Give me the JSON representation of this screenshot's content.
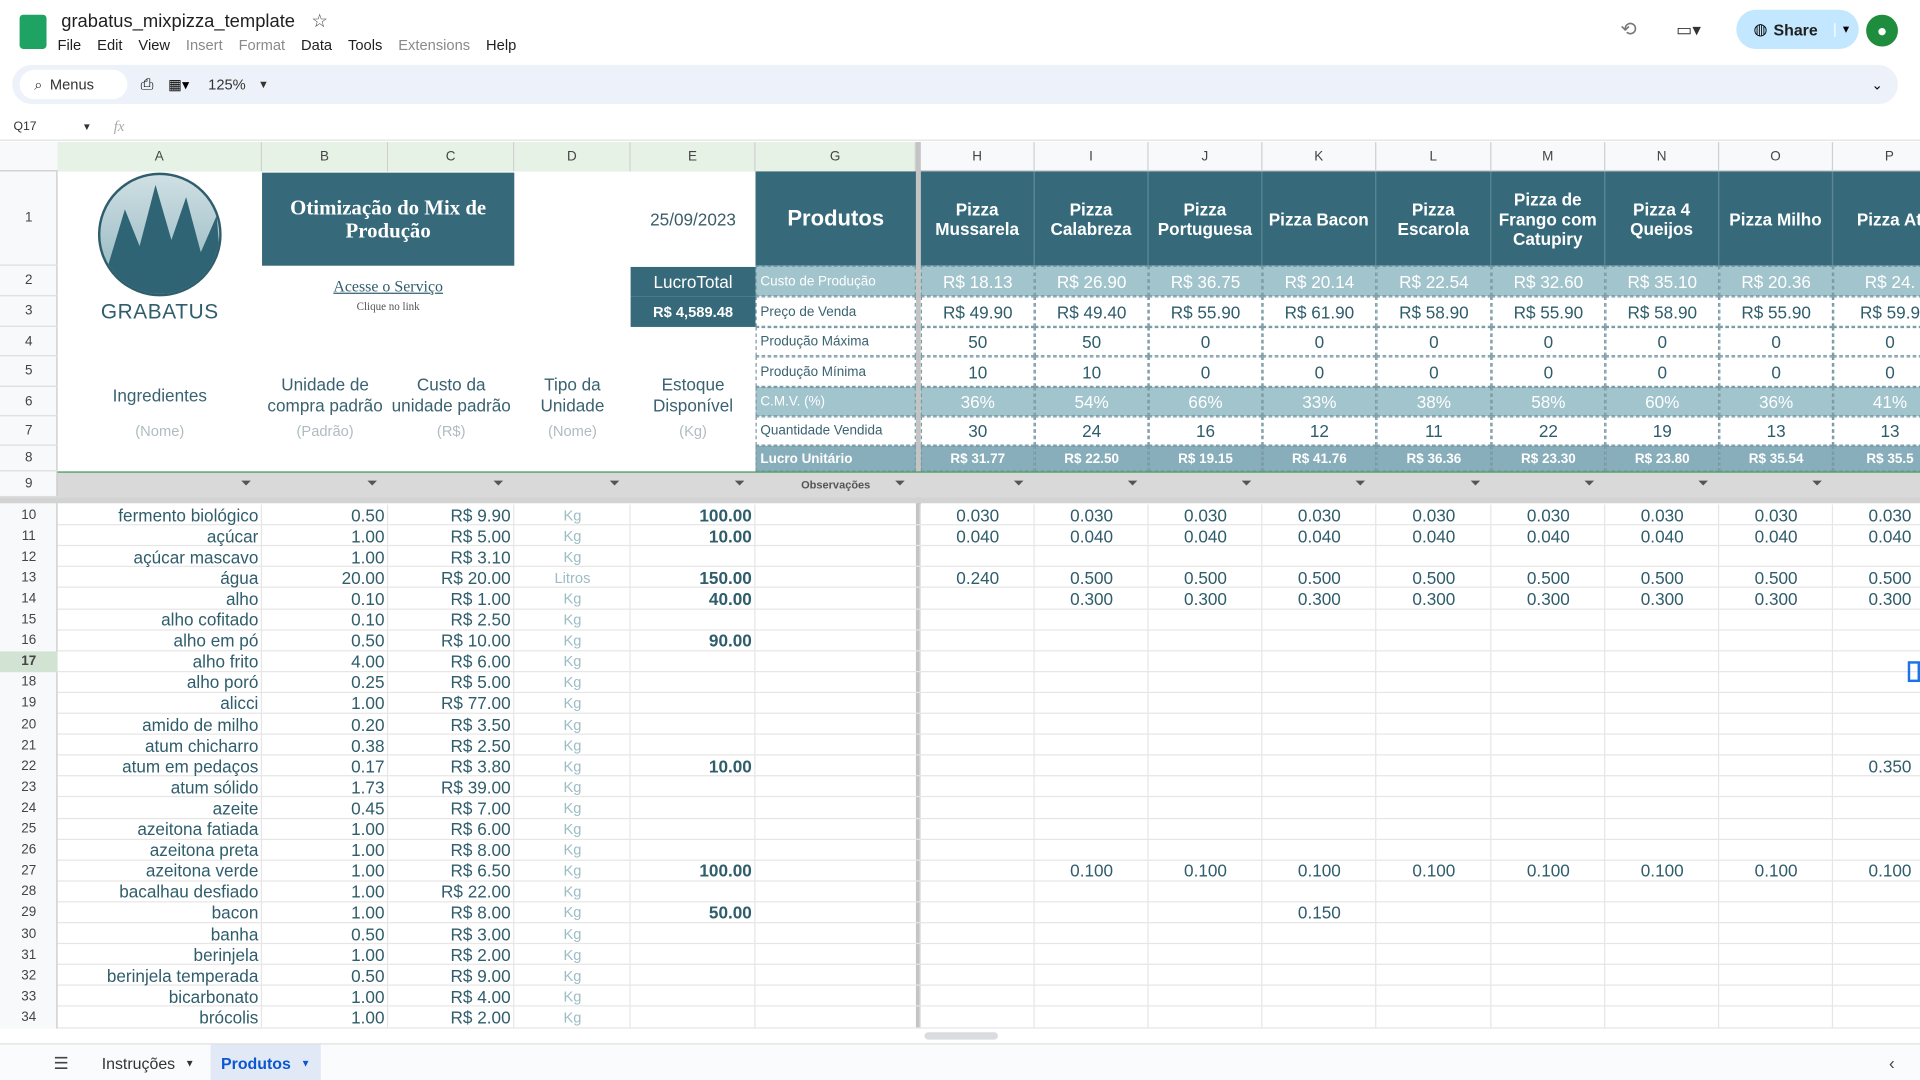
{
  "header": {
    "title": "grabatus_mixpizza_template",
    "menus": [
      "File",
      "Edit",
      "View",
      "Insert",
      "Format",
      "Data",
      "Tools",
      "Extensions",
      "Help"
    ],
    "search": "Menus",
    "zoom": "125%",
    "share": "Share",
    "cell_ref": "Q17",
    "fx": "fx"
  },
  "columns": [
    "A",
    "B",
    "C",
    "D",
    "E",
    "G",
    "H",
    "I",
    "J",
    "K",
    "L",
    "M",
    "N",
    "O",
    "P"
  ],
  "row_numbers": [
    1,
    2,
    3,
    4,
    5,
    6,
    7,
    8,
    9
  ],
  "sheet": {
    "logo_text": "GRABATUS",
    "title": "Otimização do Mix de Produção",
    "link": "Acesse o Serviço",
    "link_hint": "Clique no link",
    "date": "25/09/2023",
    "profit_label": "LucroTotal",
    "profit_value": "R$ 4,589.48",
    "ingredient_headers": [
      {
        "label": "Ingredientes",
        "unit": "(Nome)"
      },
      {
        "label": "Unidade de compra padrão",
        "unit": "(Padrão)"
      },
      {
        "label": "Custo da unidade padrão",
        "unit": "(R$)"
      },
      {
        "label": "Tipo da Unidade",
        "unit": "(Nome)"
      },
      {
        "label": "Estoque Disponível",
        "unit": "(Kg)"
      }
    ],
    "products_label": "Produtos",
    "observations": "Observações",
    "metric_labels": [
      "Custo de Produção",
      "Preço de Venda",
      "Produção Máxima",
      "Produção Mínima",
      "C.M.V. (%)",
      "Quantidade Vendida",
      "Lucro Unitário"
    ],
    "products": [
      {
        "name": "Pizza Mussarela",
        "metrics": [
          "R$ 18.13",
          "R$ 49.90",
          "50",
          "10",
          "36%",
          "30",
          "R$ 31.77"
        ]
      },
      {
        "name": "Pizza Calabreza",
        "metrics": [
          "R$ 26.90",
          "R$ 49.40",
          "50",
          "10",
          "54%",
          "24",
          "R$ 22.50"
        ]
      },
      {
        "name": "Pizza Portuguesa",
        "metrics": [
          "R$ 36.75",
          "R$ 55.90",
          "0",
          "0",
          "66%",
          "16",
          "R$ 19.15"
        ]
      },
      {
        "name": "Pizza Bacon",
        "metrics": [
          "R$ 20.14",
          "R$ 61.90",
          "0",
          "0",
          "33%",
          "12",
          "R$ 41.76"
        ]
      },
      {
        "name": "Pizza Escarola",
        "metrics": [
          "R$ 22.54",
          "R$ 58.90",
          "0",
          "0",
          "38%",
          "11",
          "R$ 36.36"
        ]
      },
      {
        "name": "Pizza de Frango com Catupiry",
        "metrics": [
          "R$ 32.60",
          "R$ 55.90",
          "0",
          "0",
          "58%",
          "22",
          "R$ 23.30"
        ]
      },
      {
        "name": "Pizza 4 Queijos",
        "metrics": [
          "R$ 35.10",
          "R$ 58.90",
          "0",
          "0",
          "60%",
          "19",
          "R$ 23.80"
        ]
      },
      {
        "name": "Pizza Milho",
        "metrics": [
          "R$ 20.36",
          "R$ 55.90",
          "0",
          "0",
          "36%",
          "13",
          "R$ 35.54"
        ]
      },
      {
        "name": "Pizza At",
        "metrics": [
          "R$ 24.",
          "R$ 59.9",
          "0",
          "0",
          "41%",
          "13",
          "R$ 35.5"
        ]
      }
    ],
    "ingredients": [
      {
        "row": 10,
        "name": "fermento biológico",
        "unit": "0.50",
        "cost": "R$ 9.90",
        "type": "Kg",
        "stock": "100.00",
        "qty": [
          "0.030",
          "0.030",
          "0.030",
          "0.030",
          "0.030",
          "0.030",
          "0.030",
          "0.030",
          "0.030"
        ]
      },
      {
        "row": 11,
        "name": "açúcar",
        "unit": "1.00",
        "cost": "R$ 5.00",
        "type": "Kg",
        "stock": "10.00",
        "qty": [
          "0.040",
          "0.040",
          "0.040",
          "0.040",
          "0.040",
          "0.040",
          "0.040",
          "0.040",
          "0.040"
        ]
      },
      {
        "row": 12,
        "name": "açúcar mascavo",
        "unit": "1.00",
        "cost": "R$ 3.10",
        "type": "Kg",
        "stock": null,
        "qty": [
          null,
          null,
          null,
          null,
          null,
          null,
          null,
          null,
          null
        ]
      },
      {
        "row": 13,
        "name": "água",
        "unit": "20.00",
        "cost": "R$ 20.00",
        "type": "Litros",
        "stock": "150.00",
        "qty": [
          "0.240",
          "0.500",
          "0.500",
          "0.500",
          "0.500",
          "0.500",
          "0.500",
          "0.500",
          "0.500"
        ]
      },
      {
        "row": 14,
        "name": "alho",
        "unit": "0.10",
        "cost": "R$ 1.00",
        "type": "Kg",
        "stock": "40.00",
        "qty": [
          null,
          "0.300",
          "0.300",
          "0.300",
          "0.300",
          "0.300",
          "0.300",
          "0.300",
          "0.300"
        ]
      },
      {
        "row": 15,
        "name": "alho cofitado",
        "unit": "0.10",
        "cost": "R$ 2.50",
        "type": "Kg",
        "stock": null,
        "qty": [
          null,
          null,
          null,
          null,
          null,
          null,
          null,
          null,
          null
        ]
      },
      {
        "row": 16,
        "name": "alho em pó",
        "unit": "0.50",
        "cost": "R$ 10.00",
        "type": "Kg",
        "stock": "90.00",
        "qty": [
          null,
          null,
          null,
          null,
          null,
          null,
          null,
          null,
          null
        ]
      },
      {
        "row": 17,
        "name": "alho frito",
        "unit": "4.00",
        "cost": "R$ 6.00",
        "type": "Kg",
        "stock": null,
        "qty": [
          null,
          null,
          null,
          null,
          null,
          null,
          null,
          null,
          null
        ]
      },
      {
        "row": 18,
        "name": "alho poró",
        "unit": "0.25",
        "cost": "R$ 5.00",
        "type": "Kg",
        "stock": null,
        "qty": [
          null,
          null,
          null,
          null,
          null,
          null,
          null,
          null,
          null
        ]
      },
      {
        "row": 19,
        "name": "alicci",
        "unit": "1.00",
        "cost": "R$ 77.00",
        "type": "Kg",
        "stock": null,
        "qty": [
          null,
          null,
          null,
          null,
          null,
          null,
          null,
          null,
          null
        ]
      },
      {
        "row": 20,
        "name": "amido de milho",
        "unit": "0.20",
        "cost": "R$ 3.50",
        "type": "Kg",
        "stock": null,
        "qty": [
          null,
          null,
          null,
          null,
          null,
          null,
          null,
          null,
          null
        ]
      },
      {
        "row": 21,
        "name": "atum chicharro",
        "unit": "0.38",
        "cost": "R$ 2.50",
        "type": "Kg",
        "stock": null,
        "qty": [
          null,
          null,
          null,
          null,
          null,
          null,
          null,
          null,
          null
        ]
      },
      {
        "row": 22,
        "name": "atum em pedaços",
        "unit": "0.17",
        "cost": "R$ 3.80",
        "type": "Kg",
        "stock": "10.00",
        "qty": [
          null,
          null,
          null,
          null,
          null,
          null,
          null,
          null,
          "0.350"
        ]
      },
      {
        "row": 23,
        "name": "atum sólido",
        "unit": "1.73",
        "cost": "R$ 39.00",
        "type": "Kg",
        "stock": null,
        "qty": [
          null,
          null,
          null,
          null,
          null,
          null,
          null,
          null,
          null
        ]
      },
      {
        "row": 24,
        "name": "azeite",
        "unit": "0.45",
        "cost": "R$ 7.00",
        "type": "Kg",
        "stock": null,
        "qty": [
          null,
          null,
          null,
          null,
          null,
          null,
          null,
          null,
          null
        ]
      },
      {
        "row": 25,
        "name": "azeitona fatiada",
        "unit": "1.00",
        "cost": "R$ 6.00",
        "type": "Kg",
        "stock": null,
        "qty": [
          null,
          null,
          null,
          null,
          null,
          null,
          null,
          null,
          null
        ]
      },
      {
        "row": 26,
        "name": "azeitona preta",
        "unit": "1.00",
        "cost": "R$ 8.00",
        "type": "Kg",
        "stock": null,
        "qty": [
          null,
          null,
          null,
          null,
          null,
          null,
          null,
          null,
          null
        ]
      },
      {
        "row": 27,
        "name": "azeitona verde",
        "unit": "1.00",
        "cost": "R$ 6.50",
        "type": "Kg",
        "stock": "100.00",
        "qty": [
          null,
          "0.100",
          "0.100",
          "0.100",
          "0.100",
          "0.100",
          "0.100",
          "0.100",
          "0.100"
        ]
      },
      {
        "row": 28,
        "name": "bacalhau desfiado",
        "unit": "1.00",
        "cost": "R$ 22.00",
        "type": "Kg",
        "stock": null,
        "qty": [
          null,
          null,
          null,
          null,
          null,
          null,
          null,
          null,
          null
        ]
      },
      {
        "row": 29,
        "name": "bacon",
        "unit": "1.00",
        "cost": "R$ 8.00",
        "type": "Kg",
        "stock": "50.00",
        "qty": [
          null,
          null,
          null,
          "0.150",
          null,
          null,
          null,
          null,
          null
        ]
      },
      {
        "row": 30,
        "name": "banha",
        "unit": "0.50",
        "cost": "R$ 3.00",
        "type": "Kg",
        "stock": null,
        "qty": [
          null,
          null,
          null,
          null,
          null,
          null,
          null,
          null,
          null
        ]
      },
      {
        "row": 31,
        "name": "berinjela",
        "unit": "1.00",
        "cost": "R$ 2.00",
        "type": "Kg",
        "stock": null,
        "qty": [
          null,
          null,
          null,
          null,
          null,
          null,
          null,
          null,
          null
        ]
      },
      {
        "row": 32,
        "name": "berinjela temperada",
        "unit": "0.50",
        "cost": "R$ 9.00",
        "type": "Kg",
        "stock": null,
        "qty": [
          null,
          null,
          null,
          null,
          null,
          null,
          null,
          null,
          null
        ]
      },
      {
        "row": 33,
        "name": "bicarbonato",
        "unit": "1.00",
        "cost": "R$ 4.00",
        "type": "Kg",
        "stock": null,
        "qty": [
          null,
          null,
          null,
          null,
          null,
          null,
          null,
          null,
          null
        ]
      },
      {
        "row": 34,
        "name": "brócolis",
        "unit": "1.00",
        "cost": "R$ 2.00",
        "type": "Kg",
        "stock": null,
        "qty": [
          null,
          null,
          null,
          null,
          null,
          null,
          null,
          null,
          null
        ]
      }
    ]
  },
  "tabs": [
    "Instruções",
    "Produtos"
  ]
}
